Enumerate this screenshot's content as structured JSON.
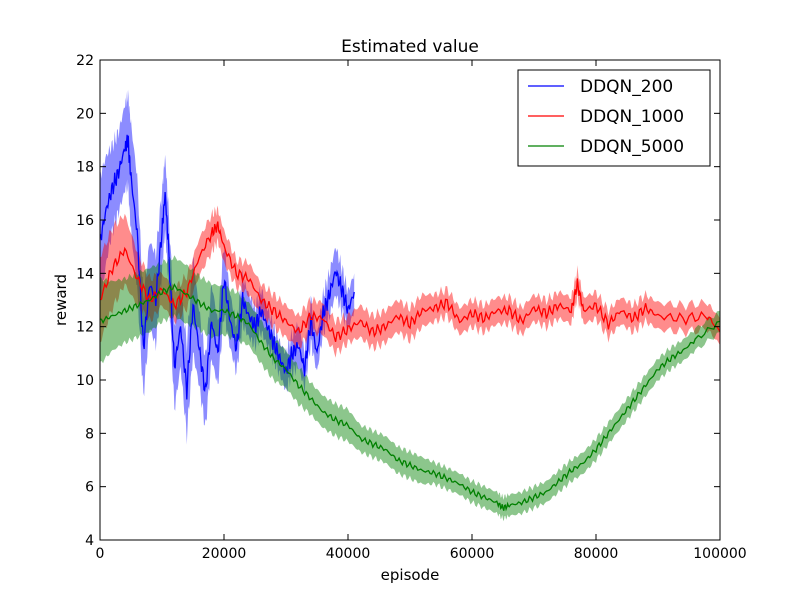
{
  "chart_data": {
    "type": "line",
    "title": "Estimated value",
    "xlabel": "episode",
    "ylabel": "reward",
    "xlim": [
      0,
      100000
    ],
    "ylim": [
      4,
      22
    ],
    "xticks": [
      0,
      20000,
      40000,
      60000,
      80000,
      100000
    ],
    "yticks": [
      4,
      6,
      8,
      10,
      12,
      14,
      16,
      18,
      20,
      22
    ],
    "grid": false,
    "legend_position": "top-right",
    "series": [
      {
        "name": "DDQN_200",
        "color": "#0000ff",
        "band_color": "#0000ff",
        "band_halfwidth": [
          2.4,
          2.0,
          1.6,
          1.5,
          1.6,
          1.7,
          2.0,
          2.1,
          1.8,
          1.6,
          1.7,
          1.5,
          1.4,
          1.4,
          1.6,
          1.5,
          1.7,
          1.8,
          1.4,
          1.3,
          1.4,
          1.2,
          1.3,
          1.0,
          0.9,
          0.9,
          0.8,
          0.7,
          0.8,
          0.7,
          0.6,
          0.6,
          0.7,
          0.7,
          0.8,
          0.7,
          0.8,
          0.7,
          0.7,
          0.8,
          0.9,
          0.8,
          0.7,
          0.7
        ],
        "x": [
          0,
          1000,
          2000,
          3000,
          4000,
          4500,
          5000,
          6000,
          7000,
          8000,
          9000,
          10000,
          10500,
          11000,
          12000,
          13000,
          14000,
          15000,
          16000,
          17000,
          18000,
          19000,
          20000,
          21000,
          22000,
          23000,
          24000,
          25000,
          26000,
          27000,
          28000,
          29000,
          30000,
          31000,
          32000,
          33000,
          34000,
          35000,
          36000,
          37000,
          38000,
          39000,
          40000,
          41000
        ],
        "y": [
          15.2,
          16.4,
          17.2,
          17.8,
          18.7,
          19.0,
          17.6,
          15.5,
          11.2,
          13.6,
          13.0,
          15.6,
          17.0,
          15.2,
          10.5,
          12.0,
          9.6,
          12.8,
          11.2,
          9.5,
          12.2,
          11.0,
          13.8,
          12.2,
          11.2,
          13.0,
          12.4,
          12.0,
          12.6,
          12.0,
          11.4,
          10.8,
          10.3,
          11.0,
          11.3,
          10.4,
          12.2,
          11.0,
          12.5,
          13.2,
          14.1,
          13.4,
          12.6,
          13.3
        ]
      },
      {
        "name": "DDQN_1000",
        "color": "#ff0000",
        "band_color": "#ff0000",
        "band_halfwidth": [
          1.6,
          1.5,
          1.3,
          1.0,
          0.8,
          0.6,
          0.6,
          0.6,
          0.7,
          0.7,
          0.6,
          0.6,
          0.5,
          0.6,
          0.6,
          0.6,
          0.6,
          0.6,
          0.6,
          0.6,
          0.6,
          0.5,
          0.6,
          0.6,
          0.6,
          0.6,
          0.6,
          0.6,
          0.5,
          0.5,
          0.5,
          0.5,
          0.5,
          0.5,
          0.5,
          0.5,
          0.5,
          0.5,
          0.5,
          0.5,
          0.5,
          0.5,
          0.5,
          0.5,
          0.5,
          0.5,
          0.5,
          0.5,
          0.5,
          0.5,
          0.5
        ],
        "x": [
          0,
          2000,
          4000,
          6000,
          8000,
          10000,
          12000,
          14000,
          16000,
          18000,
          19000,
          20000,
          22000,
          24000,
          26000,
          28000,
          30000,
          32000,
          34000,
          36000,
          38000,
          40000,
          42000,
          44000,
          46000,
          48000,
          50000,
          52000,
          54000,
          56000,
          58000,
          60000,
          62000,
          64000,
          66000,
          68000,
          70000,
          72000,
          74000,
          76000,
          77000,
          78000,
          80000,
          82000,
          84000,
          86000,
          88000,
          90000,
          94000,
          98000,
          100000
        ],
        "y": [
          13.0,
          14.2,
          14.9,
          13.8,
          13.0,
          13.4,
          12.8,
          13.3,
          14.6,
          15.5,
          15.8,
          15.0,
          14.0,
          13.8,
          13.0,
          12.6,
          12.2,
          11.8,
          12.4,
          12.3,
          11.6,
          11.9,
          12.2,
          11.8,
          12.0,
          12.4,
          12.1,
          12.6,
          12.7,
          12.9,
          12.2,
          12.5,
          12.3,
          12.6,
          12.6,
          12.2,
          12.7,
          12.5,
          12.8,
          12.6,
          13.6,
          12.6,
          12.8,
          12.1,
          12.6,
          12.3,
          12.7,
          12.4,
          12.3,
          12.4,
          11.8
        ]
      },
      {
        "name": "DDQN_5000",
        "color": "#008000",
        "band_color": "#008000",
        "band_halfwidth": [
          1.6,
          1.3,
          1.2,
          1.2,
          1.2,
          1.1,
          1.1,
          1.1,
          1.0,
          1.0,
          0.9,
          0.9,
          0.8,
          0.8,
          0.8,
          0.7,
          0.7,
          0.6,
          0.6,
          0.6,
          0.6,
          0.5,
          0.5,
          0.5,
          0.5,
          0.5,
          0.5,
          0.4,
          0.4,
          0.4,
          0.4,
          0.4,
          0.4,
          0.4,
          0.4,
          0.4,
          0.4,
          0.4,
          0.4,
          0.4,
          0.4,
          0.4,
          0.4,
          0.4,
          0.4,
          0.4,
          0.4,
          0.4,
          0.4,
          0.4,
          0.4
        ],
        "x": [
          0,
          2000,
          4000,
          6000,
          8000,
          10000,
          12000,
          14000,
          16000,
          18000,
          20000,
          22000,
          24000,
          26000,
          28000,
          30000,
          32000,
          34000,
          36000,
          38000,
          40000,
          42000,
          44000,
          46000,
          48000,
          50000,
          52000,
          54000,
          56000,
          58000,
          60000,
          62000,
          64000,
          65000,
          66000,
          68000,
          70000,
          72000,
          74000,
          76000,
          78000,
          80000,
          82000,
          84000,
          86000,
          88000,
          90000,
          92000,
          94000,
          96000,
          100000
        ],
        "y": [
          12.2,
          12.4,
          12.6,
          12.8,
          13.0,
          13.3,
          13.5,
          13.2,
          12.9,
          12.6,
          12.6,
          12.4,
          12.1,
          11.4,
          10.8,
          10.4,
          9.8,
          9.3,
          8.8,
          8.5,
          8.3,
          7.8,
          7.6,
          7.4,
          7.0,
          6.8,
          6.6,
          6.5,
          6.3,
          6.1,
          5.8,
          5.6,
          5.4,
          5.2,
          5.3,
          5.4,
          5.6,
          5.8,
          6.2,
          6.6,
          6.9,
          7.4,
          8.0,
          8.6,
          9.2,
          9.8,
          10.4,
          10.8,
          11.1,
          11.5,
          12.2
        ]
      }
    ]
  }
}
